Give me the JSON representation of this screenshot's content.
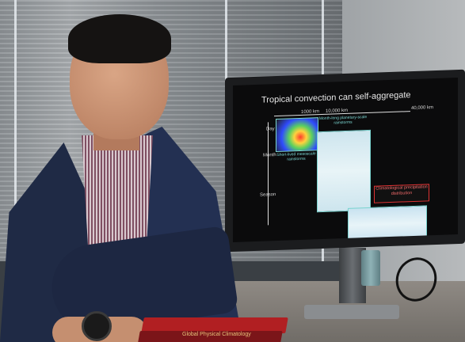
{
  "slide": {
    "title": "Tropical convection can self-aggregate",
    "axis_top_ticks": [
      "1000 km",
      "10,000 km",
      "40,000 km"
    ],
    "axis_left_ticks": [
      "Day",
      "Month",
      "Season"
    ],
    "labels": {
      "planetary": "Month-long planetary-scale rainstorms",
      "mesoscale": "Short-lived mesoscale rainstorms",
      "climatological": "Climatological precipitation distribution"
    }
  },
  "book": {
    "title": "Global Physical Climatology"
  }
}
